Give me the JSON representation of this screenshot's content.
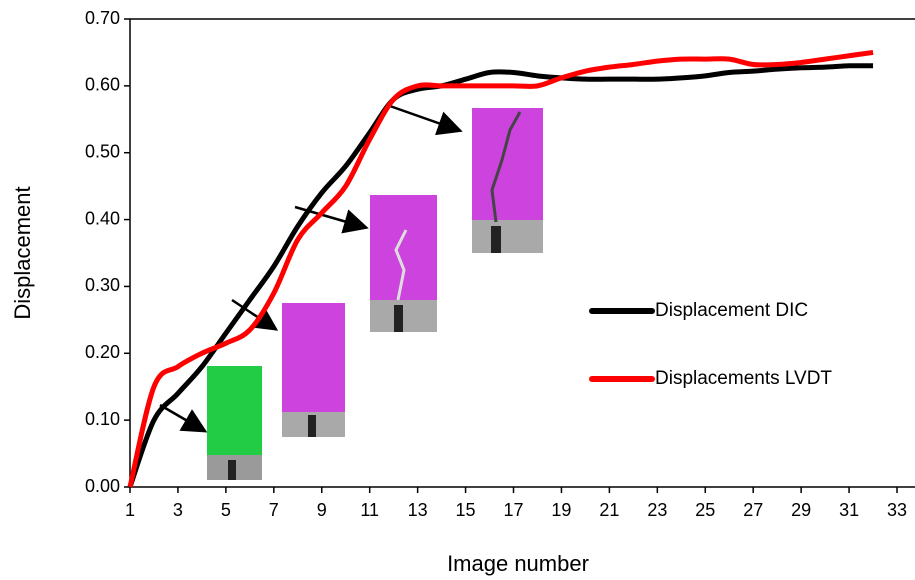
{
  "chart_data": {
    "type": "line",
    "x_label": "Image number",
    "y_label": "Displacement",
    "x": [
      1,
      2,
      3,
      4,
      5,
      6,
      7,
      8,
      9,
      10,
      11,
      12,
      13,
      14,
      15,
      16,
      17,
      18,
      19,
      20,
      21,
      22,
      23,
      24,
      25,
      26,
      27,
      28,
      29,
      30,
      31,
      32
    ],
    "series": [
      {
        "name": "Displacement DIC",
        "color": "#000000",
        "values": [
          0,
          0.1,
          0.14,
          0.18,
          0.23,
          0.28,
          0.33,
          0.39,
          0.44,
          0.48,
          0.53,
          0.58,
          0.595,
          0.6,
          0.61,
          0.62,
          0.62,
          0.615,
          0.612,
          0.61,
          0.61,
          0.61,
          0.61,
          0.612,
          0.615,
          0.62,
          0.622,
          0.625,
          0.627,
          0.628,
          0.63,
          0.63
        ]
      },
      {
        "name": "Displacements LVDT",
        "color": "#ff0000",
        "values": [
          0,
          0.15,
          0.18,
          0.2,
          0.215,
          0.235,
          0.29,
          0.37,
          0.41,
          0.45,
          0.52,
          0.58,
          0.6,
          0.6,
          0.6,
          0.6,
          0.6,
          0.6,
          0.612,
          0.622,
          0.628,
          0.632,
          0.637,
          0.64,
          0.64,
          0.64,
          0.632,
          0.632,
          0.635,
          0.64,
          0.645,
          0.65
        ]
      }
    ],
    "xlim": [
      1,
      33.75
    ],
    "ylim": [
      0,
      0.7
    ],
    "xticks": [
      1,
      3,
      5,
      7,
      9,
      11,
      13,
      15,
      17,
      19,
      21,
      23,
      25,
      27,
      29,
      31,
      33
    ],
    "yticks": [
      {
        "value": 0,
        "label": "0.00"
      },
      {
        "value": 0.1,
        "label": "0.10"
      },
      {
        "value": 0.2,
        "label": "0.20"
      },
      {
        "value": 0.3,
        "label": "0.30"
      },
      {
        "value": 0.4,
        "label": "0.40"
      },
      {
        "value": 0.5,
        "label": "0.50"
      },
      {
        "value": 0.6,
        "label": "0.60"
      },
      {
        "value": 0.7,
        "label": "0.70"
      }
    ],
    "grid": false,
    "legend": "right"
  }
}
